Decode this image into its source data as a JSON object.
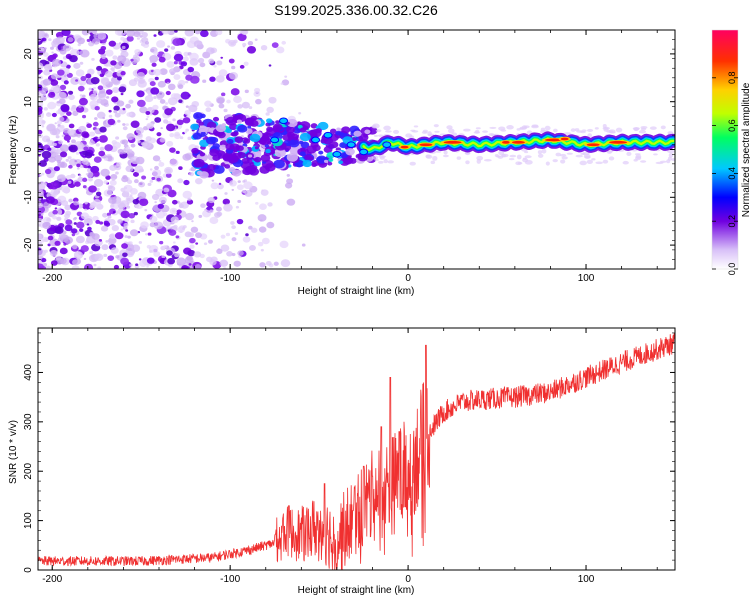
{
  "title": "S199.2025.336.00.32.C26",
  "chart_data": [
    {
      "type": "heatmap",
      "name": "spectrogram",
      "xlabel": "Height of straight line (km)",
      "ylabel": "Frequency (Hz)",
      "xlim": [
        -208,
        150
      ],
      "ylim": [
        -25,
        25
      ],
      "xticks": [
        -200,
        -100,
        0,
        100
      ],
      "yticks": [
        -20,
        -10,
        0,
        10,
        20
      ],
      "xtick_labels": [
        "-200",
        "-100",
        "0",
        "100"
      ],
      "ytick_labels": [
        "-20",
        "-10",
        "0",
        "10",
        "20"
      ],
      "colorbar": {
        "label": "Normalized spectral amplitude",
        "range": [
          0,
          1
        ],
        "ticks": [
          0.0,
          0.2,
          0.4,
          0.6,
          0.8
        ],
        "tick_labels": [
          "0.0",
          "0.2",
          "0.4",
          "0.6",
          "0.8"
        ],
        "colormap": [
          "#ffffff",
          "#d8c0f8",
          "#7000e0",
          "#0000ff",
          "#00c8ff",
          "#00ff60",
          "#c0ff00",
          "#ffd000",
          "#ff3000",
          "#ff0060"
        ]
      },
      "ridge": {
        "description_points_x": [
          -30,
          -20,
          -10,
          0,
          10,
          20,
          40,
          60,
          80,
          100,
          120,
          150
        ],
        "frequency_hz": [
          1,
          0,
          1.5,
          0.5,
          1,
          1.5,
          1,
          1.5,
          2,
          1,
          1.5,
          1.5
        ]
      }
    },
    {
      "type": "line",
      "name": "snr",
      "xlabel": "Height of straight line (km)",
      "ylabel": "SNR (10 * v/v)",
      "xlim": [
        -208,
        150
      ],
      "ylim": [
        0,
        490
      ],
      "xticks": [
        -200,
        -100,
        0,
        100
      ],
      "yticks": [
        0,
        100,
        200,
        300,
        400
      ],
      "xtick_labels": [
        "-200",
        "-100",
        "0",
        "100"
      ],
      "ytick_labels": [
        "0",
        "100",
        "200",
        "300",
        "400"
      ],
      "series_color": "#f03030",
      "trend": {
        "x": [
          -208,
          -150,
          -110,
          -90,
          -75,
          -70,
          -60,
          -50,
          -40,
          -30,
          -20,
          -10,
          0,
          10,
          20,
          30,
          40,
          60,
          80,
          100,
          120,
          150
        ],
        "y": [
          18,
          18,
          25,
          40,
          55,
          80,
          70,
          90,
          60,
          110,
          150,
          170,
          200,
          270,
          320,
          340,
          345,
          350,
          360,
          390,
          420,
          460
        ]
      },
      "spikes": {
        "x": [
          -67,
          -47,
          -31,
          -25,
          -20,
          -15,
          -10,
          -5,
          10
        ],
        "y": [
          130,
          175,
          120,
          210,
          190,
          290,
          390,
          280,
          455
        ]
      }
    }
  ]
}
